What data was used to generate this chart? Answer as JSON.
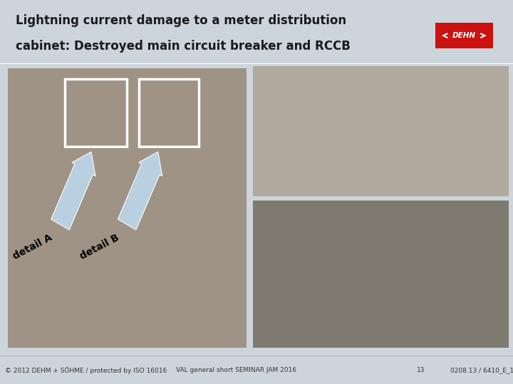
{
  "title_line1": "Lightning current damage to a meter distribution",
  "title_line2": "cabinet: Destroyed main circuit breaker and RCCB",
  "slide_bg": "#cdd5dc",
  "header_bg": "#cdd5dc",
  "footer_text_left": "© 2012 DEHM + SÖHME / protected by ISO 16016",
  "footer_text_mid": "VAL general short SEMINAR JAM 2016",
  "footer_text_right_num": "13",
  "footer_text_right": "0208.13 / 6410_E_1",
  "detail_a_label": "detail A",
  "detail_b_label": "detail B",
  "title_fontsize": 12,
  "footer_fontsize": 6.5,
  "arrow_color": "#b8d0e0",
  "footer_bg": "#ffffff",
  "white": "#ffffff",
  "photo_border": "#cccccc",
  "main_photo_color": [
    0.62,
    0.58,
    0.52
  ],
  "det_a_photo_color": [
    0.7,
    0.67,
    0.62
  ],
  "det_b_photo_color": [
    0.5,
    0.48,
    0.44
  ],
  "logo_bg": "#ffffff",
  "logo_red": "#cc1111",
  "label_bg": "#d4dfe8",
  "label_fontsize": 11
}
